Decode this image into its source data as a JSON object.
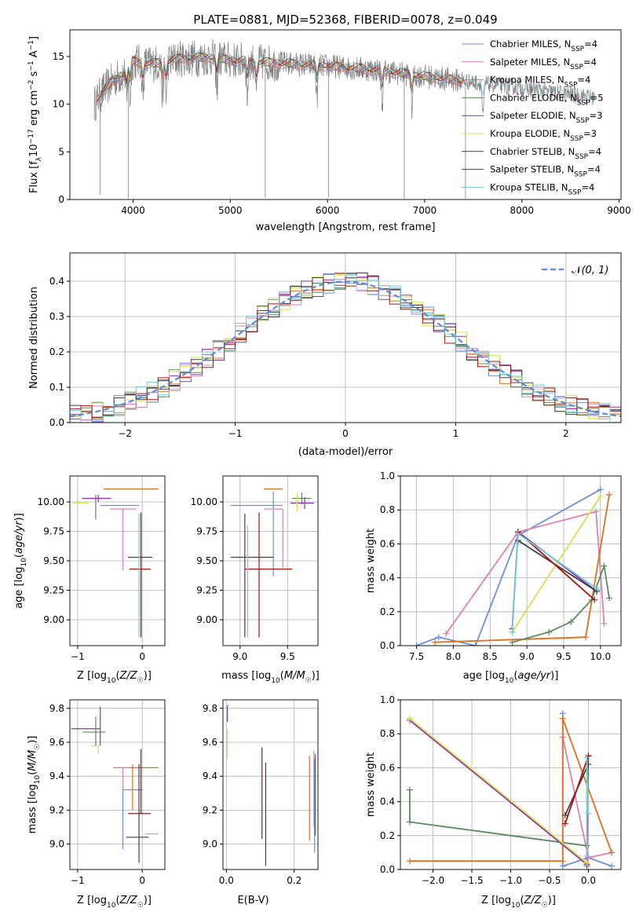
{
  "figure_title": "PLATE=0881, MJD=52368, FIBERID=0078, z=0.049",
  "colors": {
    "Chabrier MILES": "#6b8fe0",
    "Salpeter MILES": "#e080b0",
    "Kroupa MILES": "#e07020",
    "Chabrier ELODIE": "#5a8a5a",
    "Salpeter ELODIE": "#9030b0",
    "Kroupa ELODIE": "#d8e050",
    "Chabrier STELIB": "#404040",
    "Salpeter STELIB": "#b01010",
    "Kroupa STELIB": "#70d0d0",
    "data": "#808080",
    "normal": "#5b8bd8"
  },
  "chart_data": [
    {
      "id": "spectrum",
      "type": "line",
      "title": "PLATE=0881, MJD=52368, FIBERID=0078, z=0.049",
      "xlabel": "wavelength [Angstrom, rest frame]",
      "ylabel_parts": [
        "Flux [f",
        "λ",
        "10",
        "−17",
        " erg cm",
        "−2",
        " s",
        "−1",
        " A",
        "−1",
        "]"
      ],
      "xlim": [
        3350,
        9020
      ],
      "ylim": [
        0,
        17.8
      ],
      "xticks": [
        4000,
        5000,
        6000,
        7000,
        8000,
        9000
      ],
      "yticks": [
        0,
        5,
        10,
        15
      ],
      "legend": [
        {
          "base": "Chabrier MILES, N",
          "sub": "SSP",
          "tail": "=4"
        },
        {
          "base": "Salpeter MILES, N",
          "sub": "SSP",
          "tail": "=4"
        },
        {
          "base": "Kroupa MILES, N",
          "sub": "SSP",
          "tail": "=4"
        },
        {
          "base": "Chabrier ELODIE, N",
          "sub": "SSP",
          "tail": "=5"
        },
        {
          "base": "Salpeter ELODIE, N",
          "sub": "SSP",
          "tail": "=3"
        },
        {
          "base": "Kroupa ELODIE, N",
          "sub": "SSP",
          "tail": "=3"
        },
        {
          "base": "Chabrier STELIB, N",
          "sub": "SSP",
          "tail": "=4"
        },
        {
          "base": "Salpeter STELIB, N",
          "sub": "SSP",
          "tail": "=4"
        },
        {
          "base": "Kroupa STELIB, N",
          "sub": "SSP",
          "tail": "=4"
        }
      ],
      "data_envelope": [
        [
          3600,
          10.0
        ],
        [
          3700,
          11.5
        ],
        [
          3800,
          12.5
        ],
        [
          3900,
          13.2
        ],
        [
          4000,
          14.5
        ],
        [
          4200,
          14.2
        ],
        [
          4500,
          14.8
        ],
        [
          4800,
          14.9
        ],
        [
          5000,
          14.6
        ],
        [
          5500,
          14.3
        ],
        [
          6000,
          14.0
        ],
        [
          6500,
          13.6
        ],
        [
          7000,
          12.9
        ],
        [
          7500,
          12.3
        ],
        [
          8000,
          11.7
        ],
        [
          8500,
          11.0
        ],
        [
          8750,
          10.7
        ]
      ],
      "absorption_dips": [
        3934,
        3969,
        4101,
        4304,
        4340,
        4861,
        5175,
        5270,
        5892,
        6563,
        6867,
        7600
      ],
      "sharp_spikes": [
        [
          3660,
          0.5
        ],
        [
          5360,
          0.2
        ],
        [
          6010,
          0.2
        ],
        [
          6790,
          0.1
        ],
        [
          7420,
          0.1
        ],
        [
          3950,
          0.1
        ]
      ]
    },
    {
      "id": "residuals",
      "type": "histogram",
      "xlabel": "(data-model)/error",
      "ylabel": "Normed distribution",
      "xlim": [
        -2.5,
        2.5
      ],
      "ylim": [
        0,
        0.48
      ],
      "xticks": [
        -2,
        -1,
        0,
        1,
        2
      ],
      "yticks": [
        0.0,
        0.1,
        0.2,
        0.3,
        0.4
      ],
      "legend_label": "N(0, 1)",
      "bin_width": 0.1,
      "grid": true
    },
    {
      "id": "age_vs_Z",
      "type": "errorbar",
      "xlabel": "Z [log10(Z/Z☉)]",
      "ylabel": "age  [log10(age/yr)]",
      "xlim": [
        -1.12,
        0.35
      ],
      "ylim": [
        8.78,
        10.22
      ],
      "xticks": [
        -1,
        0
      ],
      "yticks": [
        9.0,
        9.25,
        9.5,
        9.75,
        10.0
      ],
      "points": [
        {
          "model": "Kroupa MILES",
          "x": -0.05,
          "xerr": [
            0.55,
            0.3
          ],
          "y": 10.11,
          "yerr": [
            0.0,
            0.0
          ]
        },
        {
          "model": "Chabrier ELODIE",
          "x": -0.72,
          "xerr": [
            0.12,
            0.12
          ],
          "y": 10.03,
          "yerr": [
            0.18,
            0.03
          ]
        },
        {
          "model": "Salpeter ELODIE",
          "x": -0.68,
          "xerr": [
            0.25,
            0.2
          ],
          "y": 10.03,
          "yerr": [
            0.03,
            0.03
          ]
        },
        {
          "model": "Kroupa ELODIE",
          "x": -0.95,
          "xerr": [
            0.12,
            0.12
          ],
          "y": 9.99,
          "yerr": [
            0.0,
            0.0
          ]
        },
        {
          "model": "Chabrier MILES",
          "x": -0.3,
          "xerr": [
            0.35,
            0.25
          ],
          "y": 9.97,
          "yerr": [
            0.0,
            0.0
          ]
        },
        {
          "model": "Salpeter MILES",
          "x": -0.3,
          "xerr": [
            0.2,
            0.2
          ],
          "y": 9.94,
          "yerr": [
            0.52,
            0.0
          ]
        },
        {
          "model": "Chabrier STELIB",
          "x": -0.02,
          "xerr": [
            0.2,
            0.18
          ],
          "y": 9.53,
          "yerr": [
            0.68,
            0.37
          ]
        },
        {
          "model": "Salpeter STELIB",
          "x": -0.02,
          "xerr": [
            0.18,
            0.15
          ],
          "y": 9.43,
          "yerr": [
            0.58,
            0.48
          ]
        },
        {
          "model": "Kroupa STELIB",
          "x": -0.05,
          "xerr": [
            0.0,
            0.0
          ],
          "y": 9.4,
          "yerr": [
            0.55,
            0.5
          ]
        }
      ]
    },
    {
      "id": "age_vs_mass",
      "type": "errorbar",
      "xlabel": "mass [log10(M/M☉)]",
      "ylabel": "",
      "xlim": [
        8.82,
        9.82
      ],
      "ylim": [
        8.78,
        10.22
      ],
      "xticks": [
        9.0,
        9.5
      ],
      "yticks": [
        9.0,
        9.25,
        9.5,
        9.75,
        10.0
      ],
      "points": [
        {
          "model": "Kroupa MILES",
          "x": 9.45,
          "xerr": [
            0.2,
            0.0
          ],
          "y": 10.11,
          "yerr": [
            0.0,
            0.0
          ]
        },
        {
          "model": "Chabrier ELODIE",
          "x": 9.65,
          "xerr": [
            0.1,
            0.1
          ],
          "y": 10.03,
          "yerr": [
            0.05,
            0.05
          ]
        },
        {
          "model": "Salpeter ELODIE",
          "x": 9.68,
          "xerr": [
            0.15,
            0.1
          ],
          "y": 9.99,
          "yerr": [
            0.05,
            0.05
          ]
        },
        {
          "model": "Kroupa ELODIE",
          "x": 9.6,
          "xerr": [
            0.0,
            0.0
          ],
          "y": 10.02,
          "yerr": [
            0.1,
            0.06
          ]
        },
        {
          "model": "Chabrier MILES",
          "x": 9.35,
          "xerr": [
            0.45,
            0.1
          ],
          "y": 9.97,
          "yerr": [
            0.6,
            0.12
          ]
        },
        {
          "model": "Salpeter MILES",
          "x": 9.45,
          "xerr": [
            0.2,
            0.0
          ],
          "y": 9.94,
          "yerr": [
            0.5,
            0.0
          ]
        },
        {
          "model": "Chabrier STELIB",
          "x": 9.05,
          "xerr": [
            0.15,
            0.3
          ],
          "y": 9.53,
          "yerr": [
            0.68,
            0.37
          ]
        },
        {
          "model": "Salpeter STELIB",
          "x": 9.2,
          "xerr": [
            0.15,
            0.35
          ],
          "y": 9.43,
          "yerr": [
            0.58,
            0.48
          ]
        },
        {
          "model": "Kroupa STELIB",
          "x": 9.08,
          "xerr": [
            0.0,
            0.0
          ],
          "y": 9.4,
          "yerr": [
            0.55,
            0.4
          ]
        }
      ]
    },
    {
      "id": "weight_vs_age",
      "type": "line",
      "xlabel": "age  [log10(age/yr)]",
      "ylabel": "mass weight",
      "xlim": [
        7.28,
        10.28
      ],
      "ylim": [
        0,
        1.0
      ],
      "xticks": [
        7.5,
        8.0,
        8.5,
        9.0,
        9.5,
        10.0
      ],
      "yticks": [
        0.0,
        0.2,
        0.4,
        0.6,
        0.8,
        1.0
      ],
      "series": [
        {
          "model": "Chabrier MILES",
          "x": [
            7.5,
            7.8,
            8.3,
            8.88,
            10.0
          ],
          "y": [
            0.0,
            0.05,
            0.0,
            0.65,
            0.92
          ]
        },
        {
          "model": "Salpeter MILES",
          "x": [
            7.9,
            8.88,
            9.94,
            10.05
          ],
          "y": [
            0.07,
            0.67,
            0.79,
            0.13
          ]
        },
        {
          "model": "Kroupa MILES",
          "x": [
            7.75,
            9.8,
            10.12
          ],
          "y": [
            0.02,
            0.05,
            0.89
          ]
        },
        {
          "model": "Chabrier ELODIE",
          "x": [
            8.8,
            9.3,
            9.6,
            9.88,
            10.05,
            10.12
          ],
          "y": [
            0.02,
            0.08,
            0.14,
            0.27,
            0.47,
            0.28
          ]
        },
        {
          "model": "Salpeter ELODIE",
          "x": [
            8.8,
            8.88,
            9.95
          ],
          "y": [
            0.1,
            0.67,
            0.32
          ]
        },
        {
          "model": "Kroupa ELODIE",
          "x": [
            8.8,
            10.0
          ],
          "y": [
            0.08,
            0.88
          ]
        },
        {
          "model": "Chabrier STELIB",
          "x": [
            8.88,
            9.95
          ],
          "y": [
            0.62,
            0.32
          ]
        },
        {
          "model": "Salpeter STELIB",
          "x": [
            8.88,
            9.92
          ],
          "y": [
            0.67,
            0.27
          ]
        },
        {
          "model": "Kroupa STELIB",
          "x": [
            8.8,
            8.88,
            9.97
          ],
          "y": [
            0.08,
            0.66,
            0.33
          ]
        }
      ]
    },
    {
      "id": "mass_vs_Z",
      "type": "errorbar",
      "xlabel": "Z [log10(Z/Z☉)]",
      "ylabel": "mass [log10(M/M☉)]",
      "xlim": [
        -1.12,
        0.35
      ],
      "ylim": [
        8.85,
        9.85
      ],
      "xticks": [
        -1,
        0
      ],
      "yticks": [
        9.0,
        9.2,
        9.4,
        9.6,
        9.8
      ],
      "points": [
        {
          "model": "Kroupa ELODIE",
          "x": -0.68,
          "xerr": [
            0.12,
            0.0
          ],
          "y": 9.58,
          "yerr": [
            0.05,
            0.0
          ]
        },
        {
          "model": "Salpeter ELODIE",
          "x": -0.65,
          "xerr": [
            0.45,
            0.0
          ],
          "y": 9.68,
          "yerr": [
            0.1,
            0.13
          ]
        },
        {
          "model": "Chabrier ELODIE",
          "x": -0.72,
          "xerr": [
            0.2,
            0.15
          ],
          "y": 9.66,
          "yerr": [
            0.08,
            0.09
          ]
        },
        {
          "model": "Kroupa MILES",
          "x": -0.15,
          "xerr": [
            0.3,
            0.4
          ],
          "y": 9.45,
          "yerr": [
            0.25,
            0.02
          ]
        },
        {
          "model": "Salpeter MILES",
          "x": -0.3,
          "xerr": [
            0.1,
            0.1
          ],
          "y": 9.45,
          "yerr": [
            0.3,
            0.0
          ]
        },
        {
          "model": "Chabrier MILES",
          "x": -0.3,
          "xerr": [
            0.0,
            0.3
          ],
          "y": 9.32,
          "yerr": [
            0.35,
            0.0
          ]
        },
        {
          "model": "Salpeter STELIB",
          "x": -0.02,
          "xerr": [
            0.2,
            0.15
          ],
          "y": 9.18,
          "yerr": [
            0.0,
            0.38
          ]
        },
        {
          "model": "Chabrier STELIB",
          "x": -0.05,
          "xerr": [
            0.2,
            0.15
          ],
          "y": 9.04,
          "yerr": [
            0.15,
            0.43
          ]
        },
        {
          "model": "Kroupa STELIB",
          "x": 0.05,
          "xerr": [
            0.0,
            0.2
          ],
          "y": 9.06,
          "yerr": [
            0.0,
            0.0
          ]
        }
      ]
    },
    {
      "id": "mass_vs_ebv",
      "type": "errorbar",
      "xlabel": "E(B-V)",
      "ylabel": "",
      "xlim": [
        -0.01,
        0.27
      ],
      "ylim": [
        8.85,
        9.85
      ],
      "xticks": [
        0.0,
        0.2
      ],
      "yticks": [
        9.0,
        9.2,
        9.4,
        9.6,
        9.8
      ],
      "points": [
        {
          "model": "Salpeter ELODIE",
          "x": 0.003,
          "xerr": [
            0.0,
            0.0
          ],
          "y": 9.72,
          "yerr": [
            0.0,
            0.1
          ]
        },
        {
          "model": "Kroupa ELODIE",
          "x": 0.003,
          "xerr": [
            0.0,
            0.0
          ],
          "y": 9.6,
          "yerr": [
            0.1,
            0.08
          ]
        },
        {
          "model": "Salpeter STELIB",
          "x": 0.105,
          "xerr": [
            0.0,
            0.0
          ],
          "y": 9.3,
          "yerr": [
            0.27,
            0.27
          ]
        },
        {
          "model": "Chabrier STELIB",
          "x": 0.116,
          "xerr": [
            0.0,
            0.0
          ],
          "y": 9.22,
          "yerr": [
            0.35,
            0.26
          ]
        },
        {
          "model": "Kroupa STELIB",
          "x": 0.116,
          "xerr": [
            0.0,
            0.0
          ],
          "y": 9.15,
          "yerr": [
            0.0,
            0.0
          ]
        },
        {
          "model": "Kroupa MILES",
          "x": 0.245,
          "xerr": [
            0.0,
            0.0
          ],
          "y": 9.27,
          "yerr": [
            0.25,
            0.25
          ]
        },
        {
          "model": "Salpeter MILES",
          "x": 0.258,
          "xerr": [
            0.0,
            0.0
          ],
          "y": 9.3,
          "yerr": [
            0.2,
            0.25
          ]
        },
        {
          "model": "Chabrier MILES",
          "x": 0.26,
          "xerr": [
            0.0,
            0.0
          ],
          "y": 9.2,
          "yerr": [
            0.25,
            0.3
          ]
        },
        {
          "model": "Salpeter ELODIE",
          "x": 0.262,
          "xerr": [
            0.0,
            0.0
          ],
          "y": 9.25,
          "yerr": [
            0.2,
            0.28
          ]
        }
      ]
    },
    {
      "id": "weight_vs_Z",
      "type": "line",
      "xlabel": "Z [log10(Z/Z☉)]",
      "ylabel": "mass weight",
      "xlim": [
        -2.42,
        0.42
      ],
      "ylim": [
        0,
        1.0
      ],
      "xticks": [
        -2.0,
        -1.5,
        -1.0,
        -0.5,
        0.0
      ],
      "yticks": [
        0.0,
        0.2,
        0.4,
        0.6,
        0.8,
        1.0
      ],
      "series": [
        {
          "model": "Chabrier MILES",
          "x": [
            -0.33,
            -0.33,
            0.0,
            0.3
          ],
          "y": [
            0.92,
            0.02,
            0.07,
            0.02
          ]
        },
        {
          "model": "Salpeter MILES",
          "x": [
            -0.33,
            0.0,
            0.3
          ],
          "y": [
            0.78,
            0.07,
            0.1
          ]
        },
        {
          "model": "Kroupa MILES",
          "x": [
            -2.3,
            -0.33,
            -0.33,
            0.3
          ],
          "y": [
            0.05,
            0.05,
            0.89,
            0.1
          ]
        },
        {
          "model": "Chabrier ELODIE",
          "x": [
            -2.3,
            -2.3,
            -0.02,
            -0.02
          ],
          "y": [
            0.47,
            0.28,
            0.14,
            0.02
          ]
        },
        {
          "model": "Salpeter ELODIE",
          "x": [
            -2.3,
            -0.02,
            0.0
          ],
          "y": [
            0.88,
            0.03,
            0.67
          ]
        },
        {
          "model": "Kroupa ELODIE",
          "x": [
            -2.3,
            -0.02
          ],
          "y": [
            0.89,
            0.04
          ]
        },
        {
          "model": "Chabrier STELIB",
          "x": [
            -0.3,
            0.0
          ],
          "y": [
            0.32,
            0.62
          ]
        },
        {
          "model": "Salpeter STELIB",
          "x": [
            -0.3,
            0.0
          ],
          "y": [
            0.27,
            0.67
          ]
        },
        {
          "model": "Kroupa STELIB",
          "x": [
            -0.02,
            -0.02,
            0.0
          ],
          "y": [
            0.08,
            0.66,
            0.33
          ]
        }
      ]
    }
  ]
}
